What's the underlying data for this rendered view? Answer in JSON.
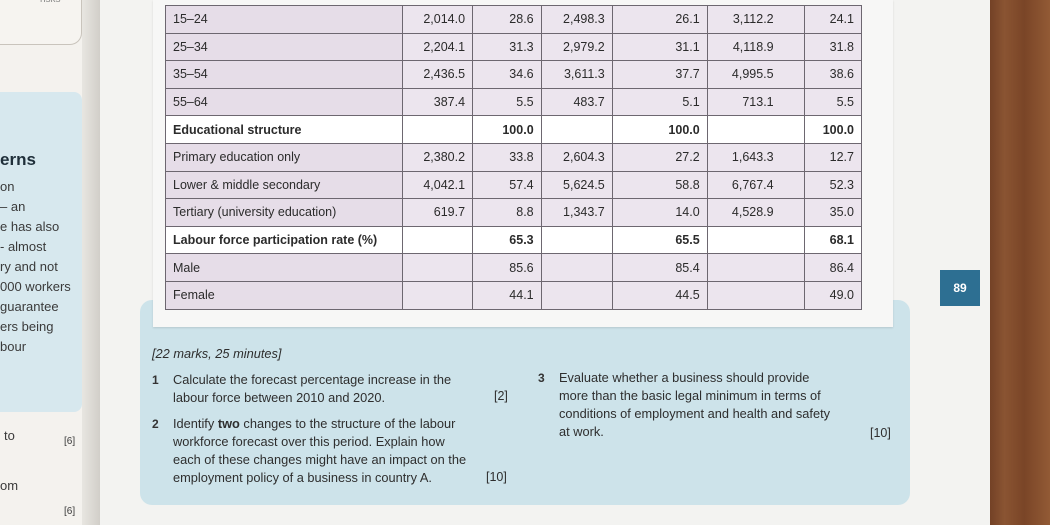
{
  "left_page": {
    "top_fragment": "risks",
    "lines": [
      "erns",
      "on",
      "– an",
      "e has also",
      "- almost",
      "ry and not",
      "000 workers",
      "guarantee",
      "ers being",
      "bour"
    ],
    "bottom_items": [
      {
        "text": "to",
        "mark": "[6]"
      },
      {
        "text": "om",
        "mark": ""
      },
      {
        "text": "",
        "mark": "[6]"
      }
    ]
  },
  "table": {
    "rows": [
      {
        "label": "15–24",
        "n1": "2,014.0",
        "p1": "28.6",
        "n2": "2,498.3",
        "p2": "26.1",
        "n3": "3,112.2",
        "p3": "24.1",
        "style": "tint"
      },
      {
        "label": "25–34",
        "n1": "2,204.1",
        "p1": "31.3",
        "n2": "2,979.2",
        "p2": "31.1",
        "n3": "4,118.9",
        "p3": "31.8",
        "style": "tint"
      },
      {
        "label": "35–54",
        "n1": "2,436.5",
        "p1": "34.6",
        "n2": "3,611.3",
        "p2": "37.7",
        "n3": "4,995.5",
        "p3": "38.6",
        "style": "tint"
      },
      {
        "label": "55–64",
        "n1": "387.4",
        "p1": "5.5",
        "n2": "483.7",
        "p2": "5.1",
        "n3": "713.1",
        "p3": "5.5",
        "style": "tint"
      },
      {
        "label": "Educational structure",
        "n1": "",
        "p1": "100.0",
        "n2": "",
        "p2": "100.0",
        "n3": "",
        "p3": "100.0",
        "style": "bold"
      },
      {
        "label": "Primary education only",
        "n1": "2,380.2",
        "p1": "33.8",
        "n2": "2,604.3",
        "p2": "27.2",
        "n3": "1,643.3",
        "p3": "12.7",
        "style": "tint"
      },
      {
        "label": "Lower & middle secondary",
        "n1": "4,042.1",
        "p1": "57.4",
        "n2": "5,624.5",
        "p2": "58.8",
        "n3": "6,767.4",
        "p3": "52.3",
        "style": "tint"
      },
      {
        "label": "Tertiary (university education)",
        "n1": "619.7",
        "p1": "8.8",
        "n2": "1,343.7",
        "p2": "14.0",
        "n3": "4,528.9",
        "p3": "35.0",
        "style": "tint"
      },
      {
        "label": "Labour force participation rate (%)",
        "n1": "",
        "p1": "65.3",
        "n2": "",
        "p2": "65.5",
        "n3": "",
        "p3": "68.1",
        "style": "bold"
      },
      {
        "label": "Male",
        "n1": "",
        "p1": "85.6",
        "n2": "",
        "p2": "85.4",
        "n3": "",
        "p3": "86.4",
        "style": "tint"
      },
      {
        "label": "Female",
        "n1": "",
        "p1": "44.1",
        "n2": "",
        "p2": "44.5",
        "n3": "",
        "p3": "49.0",
        "style": "tint"
      }
    ]
  },
  "page_number": "89",
  "tasks": {
    "meta": "[22 marks, 25 minutes]",
    "questions": [
      {
        "num": "1",
        "lines": [
          "Calculate the forecast percentage increase in the",
          "labour force between 2010 and 2020."
        ],
        "marks": "[2]"
      },
      {
        "num": "2",
        "lines_pre": "Identify ",
        "bold": "two",
        "lines_post": " changes to the structure of the labour",
        "lines": [
          "workforce forecast over this period. Explain how",
          "each of these changes might have an impact on the",
          "employment policy of a business in country A."
        ],
        "marks": "[10]"
      },
      {
        "num": "3",
        "lines": [
          "Evaluate whether a business should provide",
          "more than the basic legal minimum in terms of",
          "conditions of employment and health and safety",
          "at work."
        ],
        "marks": "[10]"
      }
    ]
  },
  "colors": {
    "table_tint": "#ece5ee",
    "task_panel": "#cde3ea",
    "page_tab": "#2d6f92"
  }
}
